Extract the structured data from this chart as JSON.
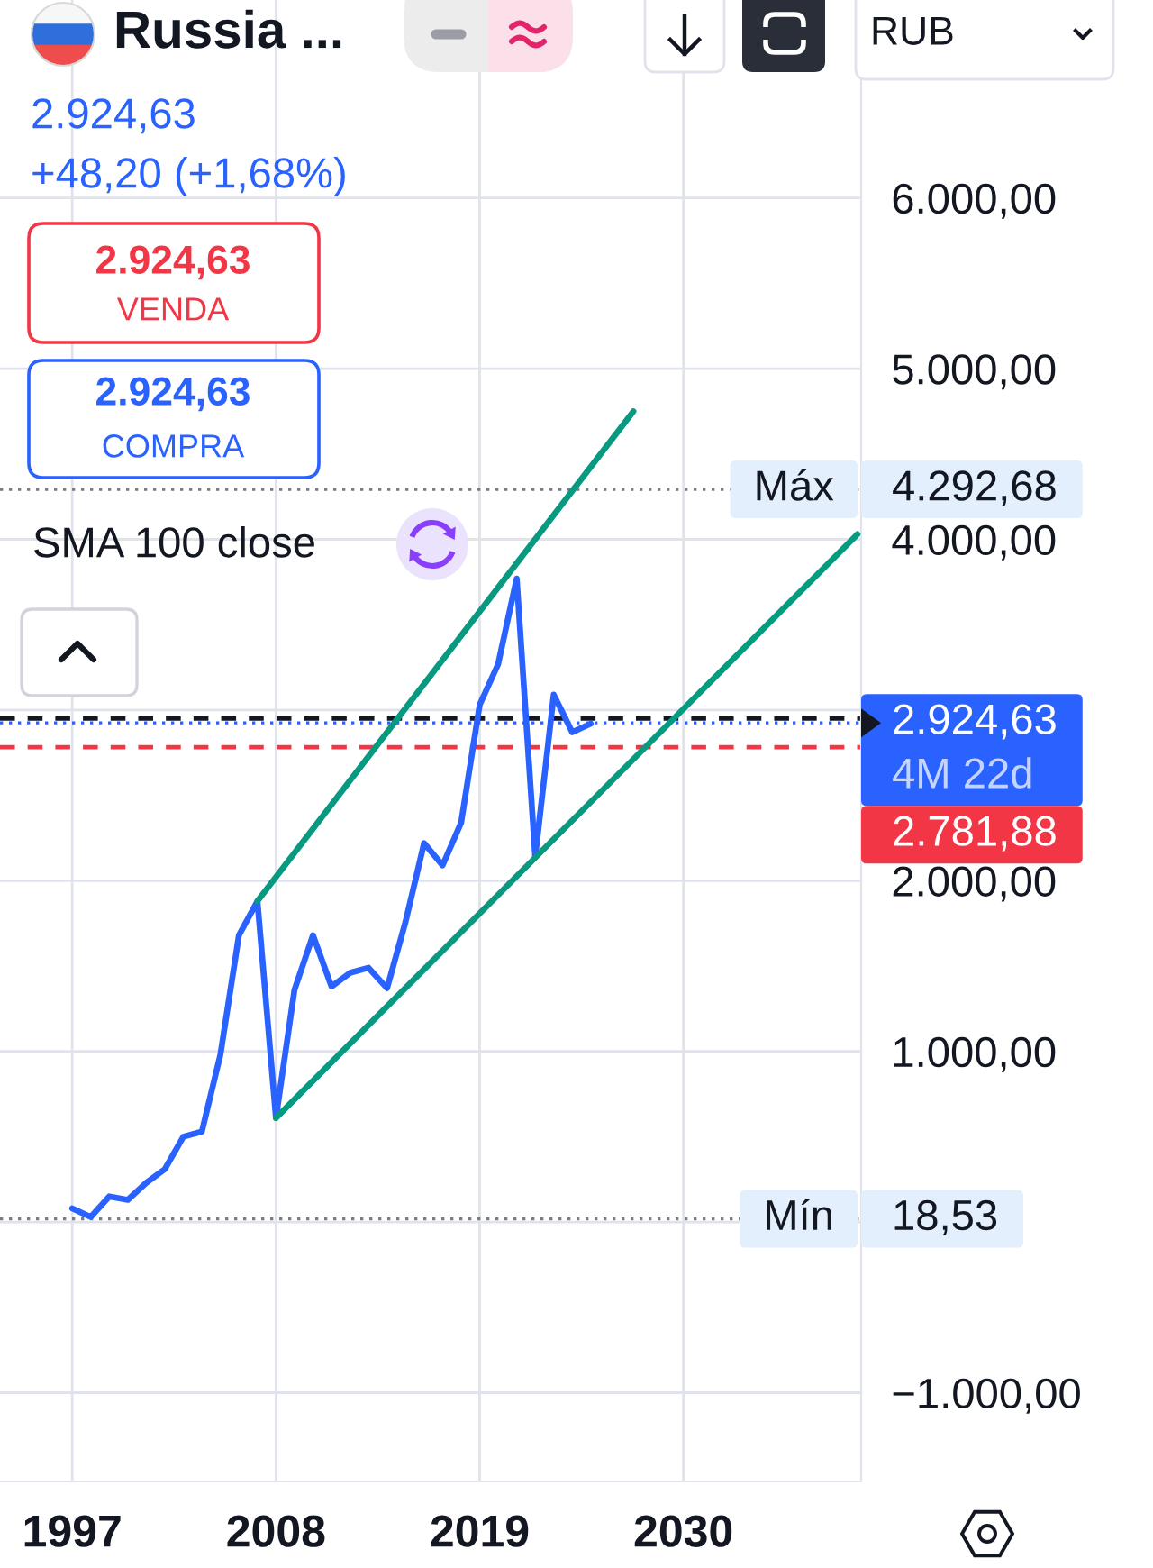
{
  "chart_data": {
    "type": "line",
    "title": "Russia ...",
    "series": [
      {
        "color": "#2962ff",
        "x": [
          1997,
          1998,
          1999,
          2000,
          2001,
          2002,
          2003,
          2004,
          2005,
          2006,
          2007,
          2008,
          2009,
          2010,
          2011,
          2012,
          2013,
          2014,
          2015,
          2016,
          2017,
          2018,
          2019,
          2020,
          2021,
          2022,
          2023,
          2024,
          2025
        ],
        "values": [
          80,
          30,
          150,
          130,
          230,
          310,
          500,
          530,
          980,
          1680,
          1880,
          610,
          1360,
          1680,
          1380,
          1460,
          1490,
          1370,
          1760,
          2220,
          2090,
          2340,
          3030,
          3270,
          3770,
          2140,
          3090,
          2870,
          2920
        ]
      },
      {
        "color": "#089981",
        "x": [
          2007,
          2027.3
        ],
        "values": [
          1880,
          4750
        ]
      },
      {
        "color": "#089981",
        "x": [
          2008,
          2039.4
        ],
        "values": [
          610,
          4030
        ]
      }
    ],
    "xlim": [
      1993.1,
      2039.6
    ],
    "ylim": [
      -1520,
      7160
    ],
    "xticks": [
      1997,
      2008,
      2019,
      2030
    ],
    "yticks": [
      {
        "value": -1000,
        "label": "−1.000,00"
      },
      {
        "value": 0,
        "label": null
      },
      {
        "value": 1000,
        "label": "1.000,00"
      },
      {
        "value": 2000,
        "label": "2.000,00"
      },
      {
        "value": 3000,
        "label": null
      },
      {
        "value": 4000,
        "label": "4.000,00"
      },
      {
        "value": 5000,
        "label": "5.000,00"
      },
      {
        "value": 6000,
        "label": "6.000,00"
      }
    ],
    "grid": true,
    "ref_lines": [
      {
        "axis": "y",
        "value": 4292.68,
        "label": "4.292,68",
        "color": "#787b86",
        "line_style": "dotted"
      },
      {
        "axis": "y",
        "value": 2950,
        "color": "#131722",
        "line_style": "dashed"
      },
      {
        "axis": "y",
        "value": 2924.63,
        "label": "2.924,63",
        "color": "#2962ff",
        "line_style": "dotted"
      },
      {
        "axis": "y",
        "value": 2781.88,
        "label": "2.781,88",
        "color": "#f23645",
        "line_style": "dashed"
      },
      {
        "axis": "y",
        "value": 18.53,
        "label": "18,53",
        "color": "#787b86",
        "line_style": "dotted"
      }
    ],
    "annotations": [
      "2.924,63",
      "+48,20 (+1,68%)",
      "2.924,63",
      "VENDA",
      "2.924,63",
      "COMPRA",
      "SMA 100 close",
      "RUB",
      "Máx",
      "Mín",
      "4M 22d"
    ]
  }
}
